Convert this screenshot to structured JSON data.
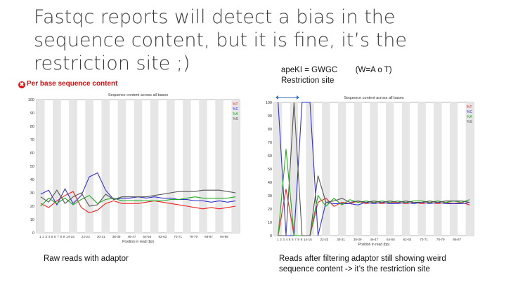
{
  "slide": {
    "title": "Fastqc reports will detect a bias in the sequence content, but it is fine, it’s the restriction site ;)",
    "annotation_line1": "apeKI = GWGC        (W=A o T)",
    "annotation_line2": "Restriction site",
    "left_heading": "Per base sequence content",
    "left_caption": "Raw reads with adaptor",
    "right_caption_line1": "Reads after filtering adaptor still showing weird",
    "right_caption_line2": "sequence content -> it’s the restriction site"
  },
  "colors": {
    "T": "#ee2222",
    "C": "#3333cc",
    "A": "#22aa22",
    "G": "#555555"
  },
  "chart_data": [
    {
      "type": "line",
      "title": "Sequence content across all bases",
      "xlabel": "Position in read (bp)",
      "ylim": [
        0,
        100
      ],
      "yticks": [
        "0",
        "10",
        "20",
        "30",
        "40",
        "50",
        "60",
        "70",
        "80",
        "90",
        "100"
      ],
      "xticks": [
        "1",
        "2",
        "3",
        "4",
        "5",
        "6",
        "7",
        "8",
        "9",
        "14-15",
        "22-23",
        "30-31",
        "38-39",
        "46-47",
        "54-55",
        "62-63",
        "70-71",
        "78-79",
        "86-87",
        "94-95"
      ],
      "legend": [
        "%T",
        "%C",
        "%A",
        "%G"
      ],
      "series": [
        {
          "name": "%T",
          "values": [
            22,
            19,
            24,
            28,
            31,
            19,
            15,
            17,
            22,
            24,
            22,
            22,
            22,
            23,
            24,
            23,
            22,
            21,
            20,
            19,
            18,
            19,
            18,
            19,
            20
          ]
        },
        {
          "name": "%C",
          "values": [
            29,
            32,
            21,
            33,
            22,
            28,
            42,
            45,
            32,
            25,
            26,
            26,
            27,
            26,
            27,
            26,
            26,
            25,
            25,
            24,
            24,
            23,
            24,
            23,
            24
          ]
        },
        {
          "name": "%A",
          "values": [
            20,
            26,
            22,
            26,
            21,
            25,
            28,
            22,
            25,
            26,
            24,
            24,
            24,
            24,
            24,
            24,
            25,
            25,
            26,
            27,
            26,
            26,
            26,
            26,
            27
          ]
        },
        {
          "name": "%G",
          "values": [
            27,
            23,
            32,
            22,
            27,
            30,
            20,
            21,
            29,
            25,
            27,
            27,
            27,
            27,
            28,
            29,
            30,
            31,
            31,
            31,
            32,
            32,
            32,
            31,
            30
          ]
        }
      ]
    },
    {
      "type": "line",
      "title": "Sequence content across all bases",
      "xlabel": "Position in read (bp)",
      "ylim": [
        0,
        100
      ],
      "yticks": [
        "0",
        "10",
        "20",
        "30",
        "40",
        "50",
        "60",
        "70",
        "80",
        "90",
        "100"
      ],
      "xticks": [
        "1",
        "2",
        "3",
        "4",
        "5",
        "6",
        "7",
        "8",
        "9",
        "14-15",
        "22-23",
        "30-31",
        "38-39",
        "46-47",
        "54-55",
        "62-63",
        "70-71",
        "78-79",
        "86-87"
      ],
      "legend": [
        "%T",
        "%C",
        "%A",
        "%G"
      ],
      "series": [
        {
          "name": "%T",
          "values": [
            0,
            35,
            0,
            0,
            0,
            25,
            28,
            22,
            25,
            24,
            26,
            24,
            25,
            24,
            25,
            25,
            24,
            25,
            24,
            25,
            24,
            25,
            24,
            25,
            23
          ]
        },
        {
          "name": "%C",
          "values": [
            100,
            0,
            0,
            100,
            100,
            0,
            25,
            24,
            24,
            24,
            23,
            25,
            24,
            25,
            24,
            24,
            25,
            24,
            25,
            24,
            25,
            24,
            24,
            24,
            25
          ]
        },
        {
          "name": "%A",
          "values": [
            0,
            65,
            0,
            0,
            0,
            30,
            22,
            28,
            23,
            27,
            25,
            26,
            25,
            26,
            25,
            26,
            25,
            26,
            26,
            25,
            26,
            25,
            26,
            25,
            27
          ]
        },
        {
          "name": "%G",
          "values": [
            0,
            0,
            100,
            0,
            0,
            45,
            25,
            26,
            28,
            25,
            26,
            25,
            26,
            25,
            26,
            25,
            26,
            25,
            25,
            26,
            25,
            26,
            26,
            26,
            25
          ]
        }
      ]
    }
  ]
}
